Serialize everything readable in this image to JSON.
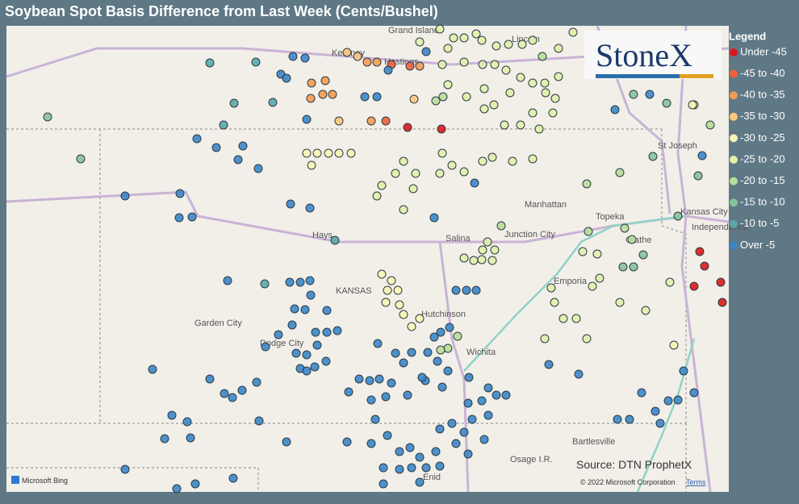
{
  "header": {
    "title": "Soybean Spot Basis Difference from Last Week (Cents/Bushel)"
  },
  "legend": {
    "title": "Legend",
    "items": [
      {
        "label": "Under -45",
        "color": "#d7191c"
      },
      {
        "label": "-45 to -40",
        "color": "#f0603a"
      },
      {
        "label": "-40 to -35",
        "color": "#f59a52"
      },
      {
        "label": "-35 to -30",
        "color": "#fcc77c"
      },
      {
        "label": "-30 to -25",
        "color": "#f8f6b4"
      },
      {
        "label": "-25 to -20",
        "color": "#e0f0aa"
      },
      {
        "label": "-20 to -15",
        "color": "#b7de9a"
      },
      {
        "label": "-15 to -10",
        "color": "#86c29a"
      },
      {
        "label": "-10 to -5",
        "color": "#5aa7aa"
      },
      {
        "label": "Over -5",
        "color": "#3a86c8"
      }
    ]
  },
  "map": {
    "labels": [
      "Grand Island",
      "Kearney",
      "Hastings",
      "Lincoln",
      "St Joseph",
      "Manhattan",
      "Topeka",
      "Kansas City",
      "Independence",
      "Olathe",
      "Hays",
      "Salina",
      "Junction City",
      "Emporia",
      "KANSAS",
      "Hutchinson",
      "Garden City",
      "Dodge City",
      "Wichita",
      "Bartlesville",
      "Osage I.R.",
      "Enid"
    ]
  },
  "logo": "StoneX",
  "source": "Source: DTN ProphetX",
  "copyright": "© 2022 Microsoft Corporation",
  "terms": "Terms",
  "bing": "Microsoft Bing"
}
